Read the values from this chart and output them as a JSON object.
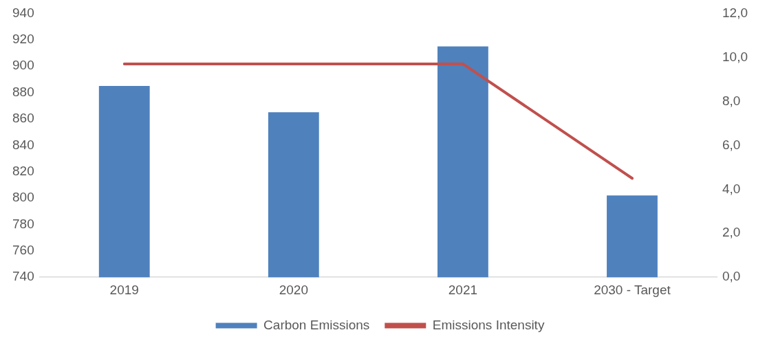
{
  "chart_data": {
    "type": "bar",
    "categories": [
      "2019",
      "2020",
      "2021",
      "2030 - Target"
    ],
    "series": [
      {
        "name": "Carbon Emissions",
        "color": "#4f81bd",
        "values": [
          885,
          865,
          915,
          802
        ]
      },
      {
        "name": "Emissions Intensity",
        "type": "line",
        "axis": "y2",
        "color": "#c0504d",
        "values": [
          9.7,
          9.7,
          9.7,
          4.5
        ]
      }
    ],
    "ylim": [
      740,
      940
    ],
    "yticks": [
      740,
      760,
      780,
      800,
      820,
      840,
      860,
      880,
      900,
      920,
      940
    ],
    "y2lim": [
      0,
      12
    ],
    "y2ticks": [
      {
        "value": 0,
        "label": "0,0"
      },
      {
        "value": 2,
        "label": "2,0"
      },
      {
        "value": 4,
        "label": "4,0"
      },
      {
        "value": 6,
        "label": "6,0"
      },
      {
        "value": 8,
        "label": "8,0"
      },
      {
        "value": 10,
        "label": "10,0"
      },
      {
        "value": 12,
        "label": "12,0"
      }
    ],
    "grid": false,
    "legend": "bottom",
    "marker": "none",
    "line_style": "solid"
  }
}
